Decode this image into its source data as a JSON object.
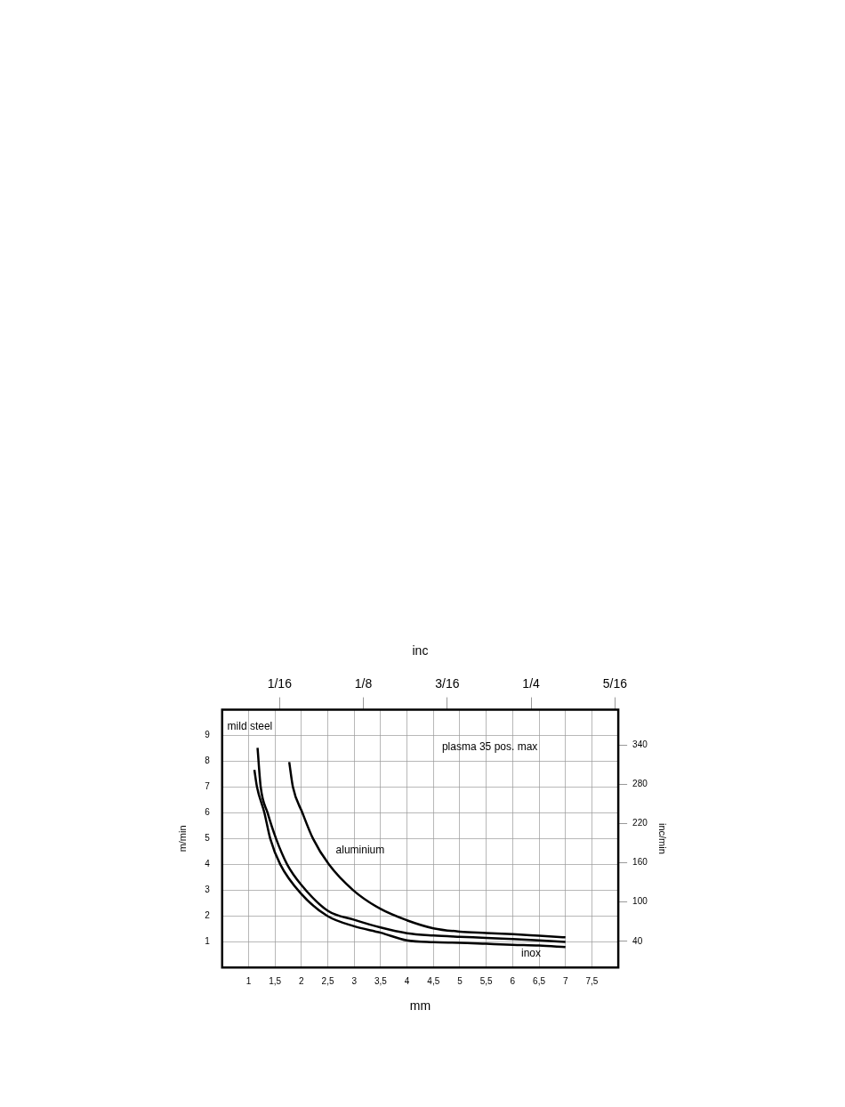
{
  "chart_data": {
    "type": "line",
    "xlabel": "mm",
    "ylabel": "m/min",
    "y2label": "inc/min",
    "x2label": "inc",
    "xlim": [
      0.5,
      8
    ],
    "xticks": [
      1,
      {
        "value": 1.5,
        "label": "1,5"
      },
      2,
      {
        "value": 2.5,
        "label": "2,5"
      },
      3,
      {
        "value": 3.5,
        "label": "3,5"
      },
      4,
      {
        "value": 4.5,
        "label": "4,5"
      },
      5,
      {
        "value": 5.5,
        "label": "5,5"
      },
      6,
      {
        "value": 6.5,
        "label": "6,5"
      },
      7,
      {
        "value": 7.5,
        "label": "7,5"
      }
    ],
    "x2lim": [
      0.0197,
      0.315
    ],
    "x2ticks": [
      {
        "value": 0.0625,
        "label": "1/16"
      },
      {
        "value": 0.125,
        "label": "1/8"
      },
      {
        "value": 0.1875,
        "label": "3/16"
      },
      {
        "value": 0.25,
        "label": "1/4"
      },
      {
        "value": 0.3125,
        "label": "5/16"
      }
    ],
    "ylim": [
      0,
      10
    ],
    "yticks": [
      1,
      2,
      3,
      4,
      5,
      6,
      7,
      8,
      9
    ],
    "y2lim": [
      0,
      394
    ],
    "y2ticks": [
      40,
      100,
      160,
      220,
      280,
      340
    ],
    "grid": true,
    "legend": false,
    "marker": "none",
    "line_style": "solid",
    "series": [
      {
        "color": "#000000",
        "x": [
          1.77,
          1.84,
          2.02,
          2.22,
          2.52,
          2.98,
          3.5,
          4,
          4.5,
          5,
          5.5,
          6,
          6.5,
          7
        ],
        "values": [
          7.97,
          7,
          6,
          5,
          4,
          3,
          2.27,
          1.83,
          1.52,
          1.39,
          1.34,
          1.29,
          1.23,
          1.17
        ]
      },
      {
        "color": "#000000",
        "x": [
          1.17,
          1.23,
          1.36,
          1.52,
          1.73,
          2,
          2.5,
          3,
          3.5,
          4,
          4.5,
          5,
          5.5,
          6,
          6.5,
          7
        ],
        "values": [
          8.52,
          7,
          6,
          5,
          4,
          3.2,
          2.2,
          1.85,
          1.55,
          1.33,
          1.24,
          1.19,
          1.15,
          1.1,
          1.05,
          0.99
        ]
      },
      {
        "color": "#000000",
        "x": [
          1.11,
          1.16,
          1.3,
          1.41,
          1.6,
          2,
          2.49,
          3,
          3.5,
          4,
          4.5,
          5,
          5.5,
          6,
          6.5,
          7
        ],
        "values": [
          7.67,
          7,
          6,
          5,
          4,
          2.85,
          2,
          1.6,
          1.35,
          1.05,
          0.98,
          0.96,
          0.92,
          0.88,
          0.85,
          0.79
        ]
      }
    ],
    "annotations": [
      "mild steel",
      "plasma 35 pos. max",
      "aluminium",
      "inox"
    ]
  }
}
